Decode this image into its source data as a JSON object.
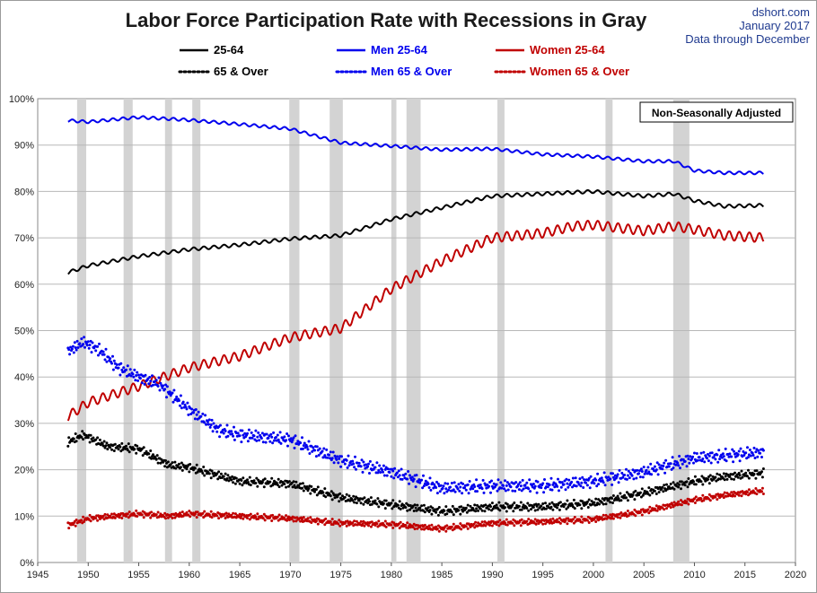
{
  "chart_data": {
    "type": "line",
    "title": "Labor Force Participation Rate with Recessions in Gray",
    "source": "dshort.com",
    "date_note": "January 2017",
    "data_note": "Data through December",
    "annotation": "Non-Seasonally Adjusted",
    "xlabel": "",
    "ylabel": "",
    "xlim": [
      1945,
      2020
    ],
    "ylim": [
      0,
      100
    ],
    "x_ticks": [
      1945,
      1950,
      1955,
      1960,
      1965,
      1970,
      1975,
      1980,
      1985,
      1990,
      1995,
      2000,
      2005,
      2010,
      2015,
      2020
    ],
    "y_ticks": [
      0,
      10,
      20,
      30,
      40,
      50,
      60,
      70,
      80,
      90,
      100
    ],
    "y_tick_labels": [
      "0%",
      "10%",
      "20%",
      "30%",
      "40%",
      "50%",
      "60%",
      "70%",
      "80%",
      "90%",
      "100%"
    ],
    "grid": true,
    "legend_position": "top",
    "recessions": [
      [
        1948.9,
        1949.8
      ],
      [
        1953.5,
        1954.4
      ],
      [
        1957.6,
        1958.3
      ],
      [
        1960.3,
        1961.1
      ],
      [
        1969.9,
        1970.9
      ],
      [
        1973.9,
        1975.2
      ],
      [
        1980.0,
        1980.5
      ],
      [
        1981.5,
        1982.9
      ],
      [
        1990.5,
        1991.2
      ],
      [
        2001.2,
        2001.9
      ],
      [
        2007.9,
        2009.5
      ]
    ],
    "series": [
      {
        "name": "25-64",
        "style": "solid",
        "color": "#000000",
        "seasonal_amp": 0.35,
        "x": [
          1948,
          1950,
          1955,
          1960,
          1965,
          1970,
          1975,
          1980,
          1985,
          1990,
          1995,
          2000,
          2005,
          2008,
          2010,
          2013,
          2016.9
        ],
        "y": [
          62.5,
          64.0,
          66.0,
          67.5,
          68.5,
          69.8,
          70.5,
          74.0,
          76.5,
          79.0,
          79.5,
          80.0,
          79.0,
          79.5,
          78.0,
          76.8,
          77.0
        ]
      },
      {
        "name": "Men 25-64",
        "style": "solid",
        "color": "#0000ee",
        "seasonal_amp": 0.3,
        "x": [
          1948,
          1950,
          1955,
          1960,
          1965,
          1970,
          1975,
          1980,
          1985,
          1990,
          1995,
          2000,
          2005,
          2008,
          2010,
          2013,
          2016.9
        ],
        "y": [
          95.3,
          95.0,
          96.0,
          95.4,
          94.5,
          93.5,
          90.5,
          89.8,
          89.0,
          89.2,
          88.0,
          87.5,
          86.5,
          86.5,
          84.5,
          84.0,
          84.0
        ]
      },
      {
        "name": "Women 25-64",
        "style": "solid",
        "color": "#c00000",
        "seasonal_amp": 1.0,
        "x": [
          1948,
          1950,
          1955,
          1960,
          1965,
          1970,
          1975,
          1980,
          1985,
          1990,
          1995,
          1998,
          2000,
          2005,
          2008,
          2010,
          2013,
          2016.9
        ],
        "y": [
          31.5,
          34.5,
          38.0,
          42.0,
          44.5,
          48.5,
          50.5,
          59.0,
          65.0,
          70.0,
          71.0,
          72.5,
          72.8,
          71.5,
          72.5,
          71.8,
          70.5,
          70.0
        ]
      },
      {
        "name": "65 & Over",
        "style": "dotted",
        "color": "#000000",
        "seasonal_amp": 1.0,
        "x": [
          1948,
          1949.5,
          1952,
          1955,
          1958,
          1960,
          1965,
          1970,
          1975,
          1980,
          1985,
          1990,
          1995,
          2000,
          2005,
          2010,
          2013,
          2016.9
        ],
        "y": [
          26.0,
          27.5,
          25.0,
          24.5,
          21.0,
          20.5,
          17.5,
          17.0,
          14.0,
          12.5,
          11.0,
          12.0,
          12.0,
          12.8,
          15.0,
          17.5,
          18.5,
          19.3
        ]
      },
      {
        "name": "Men 65 & Over",
        "style": "dotted",
        "color": "#0000ee",
        "seasonal_amp": 1.5,
        "x": [
          1948,
          1949.5,
          1951,
          1953,
          1955,
          1957,
          1960,
          1963,
          1965,
          1970,
          1975,
          1980,
          1985,
          1990,
          1995,
          2000,
          2005,
          2010,
          2013,
          2016.9
        ],
        "y": [
          45.5,
          47.5,
          46.0,
          42.0,
          40.0,
          38.5,
          33.0,
          28.5,
          27.5,
          26.5,
          22.0,
          19.5,
          16.0,
          16.5,
          16.5,
          17.5,
          19.5,
          22.5,
          23.0,
          23.8
        ]
      },
      {
        "name": "Women 65 & Over",
        "style": "dotted",
        "color": "#c00000",
        "seasonal_amp": 0.7,
        "x": [
          1948,
          1950,
          1955,
          1958,
          1960,
          1965,
          1970,
          1975,
          1980,
          1985,
          1990,
          1995,
          2000,
          2005,
          2010,
          2013,
          2016.9
        ],
        "y": [
          8.0,
          9.5,
          10.5,
          10.0,
          10.5,
          10.0,
          9.5,
          8.5,
          8.2,
          7.3,
          8.5,
          8.8,
          9.3,
          11.0,
          13.5,
          14.5,
          15.5
        ]
      }
    ]
  }
}
